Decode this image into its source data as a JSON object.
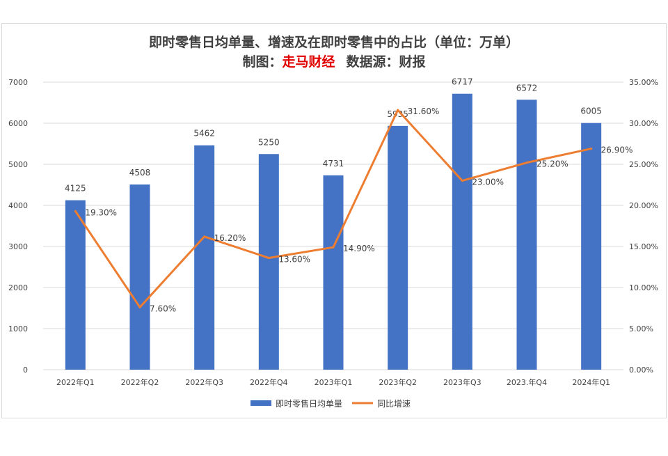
{
  "header": {
    "title": "即时零售日均单量、增速及在即时零售中的占比（单位：万单）",
    "credit_prefix": "制图：",
    "credit_brand": "走马财经",
    "source": "数据源：财报"
  },
  "colors": {
    "bar": "#4472c4",
    "line": "#ed7d31",
    "grid": "#d9d9d9",
    "text": "#404040",
    "brand": "#e00000"
  },
  "chart_data": {
    "type": "bar",
    "categories": [
      "2022年Q1",
      "2022年Q2",
      "2022年Q3",
      "2022年Q4",
      "2023年Q1",
      "2023年Q2",
      "2023年Q3",
      "2023.年Q4",
      "2024年Q1"
    ],
    "series": [
      {
        "name": "即时零售日均单量",
        "type": "bar",
        "axis": "left",
        "values": [
          4125,
          4508,
          5462,
          5250,
          4731,
          5935,
          6717,
          6572,
          6005
        ],
        "labels": [
          "4125",
          "4508",
          "5462",
          "5250",
          "4731",
          "5935",
          "6717",
          "6572",
          "6005"
        ]
      },
      {
        "name": "同比增速",
        "type": "line",
        "axis": "right",
        "values": [
          19.3,
          7.6,
          16.2,
          13.6,
          14.9,
          31.6,
          23.0,
          25.2,
          26.9
        ],
        "labels": [
          "19.30%",
          "7.60%",
          "16.20%",
          "13.60%",
          "14.90%",
          "31.60%",
          "23.00%",
          "25.20%",
          "26.90%"
        ]
      }
    ],
    "y_left": {
      "lim": [
        0,
        7000
      ],
      "ticks": [
        "0",
        "1000",
        "2000",
        "3000",
        "4000",
        "5000",
        "6000",
        "7000"
      ]
    },
    "y_right": {
      "lim": [
        0,
        35
      ],
      "ticks": [
        "0.00%",
        "5.00%",
        "10.00%",
        "15.00%",
        "20.00%",
        "25.00%",
        "30.00%",
        "35.00%"
      ]
    },
    "grid": true,
    "legend": "bottom"
  }
}
